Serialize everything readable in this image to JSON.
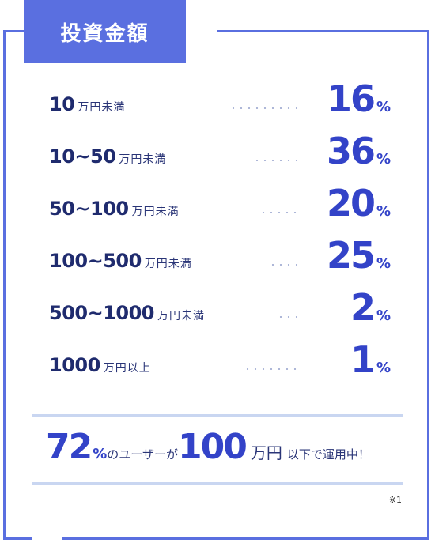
{
  "title": "投資金額",
  "rows": [
    {
      "range": "10",
      "unit": "万円未満",
      "percent": "16",
      "symbol": "%"
    },
    {
      "range": "10~50",
      "unit": "万円未満",
      "percent": "36",
      "symbol": "%"
    },
    {
      "range": "50~100",
      "unit": "万円未満",
      "percent": "20",
      "symbol": "%"
    },
    {
      "range": "100~500",
      "unit": "万円未満",
      "percent": "25",
      "symbol": "%"
    },
    {
      "range": "500~1000",
      "unit": "万円未満",
      "percent": "2",
      "symbol": "%"
    },
    {
      "range": "1000",
      "unit": "万円以上",
      "percent": "1",
      "symbol": "%"
    }
  ],
  "summary": {
    "percent": "72",
    "symbol": "%",
    "text1": "のユーザーが",
    "amount": "100",
    "unit": "万円",
    "text2": "以下で運用中！"
  },
  "note": "※1",
  "colors": {
    "accent": "#5a6fe0",
    "number": "#3343c8",
    "label": "#1f2b6e",
    "rule": "#c9d6f1"
  }
}
